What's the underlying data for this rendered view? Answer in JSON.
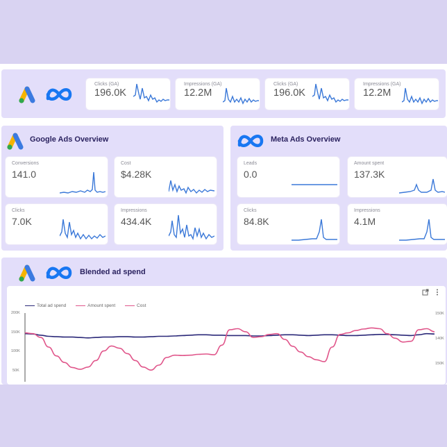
{
  "top_metrics": [
    {
      "label": "Clicks (GA)",
      "value": "196.0K"
    },
    {
      "label": "Impressions (GA)",
      "value": "12.2M"
    },
    {
      "label": "Clicks (GA)",
      "value": "196.0K"
    },
    {
      "label": "Impressions (GA)",
      "value": "12.2M"
    }
  ],
  "google_panel": {
    "title": "Google Ads Overview",
    "metrics": [
      {
        "label": "Conversions",
        "value": "141.0"
      },
      {
        "label": "Cost",
        "value": "$4.28K"
      },
      {
        "label": "Clicks",
        "value": "7.0K"
      },
      {
        "label": "Impressions",
        "value": "434.4K"
      }
    ]
  },
  "meta_panel": {
    "title": "Meta Ads Overview",
    "metrics": [
      {
        "label": "Leads",
        "value": "0.0"
      },
      {
        "label": "Amount spent",
        "value": "137.3K"
      },
      {
        "label": "Clicks",
        "value": "84.8K"
      },
      {
        "label": "Impressions",
        "value": "4.1M"
      }
    ]
  },
  "blended": {
    "title": "Blended ad spend",
    "legend": [
      "Total ad spend",
      "Amount spent",
      "Cost"
    ],
    "y_left_ticks": [
      "200K",
      "150K",
      "100K",
      "50K"
    ],
    "y_right_ticks": [
      "150K",
      "140K",
      "150K"
    ]
  },
  "icons": {
    "google_ads": "google-ads-logo-icon",
    "meta": "meta-logo-icon",
    "export": "export-icon",
    "more": "more-vert-icon"
  },
  "colors": {
    "background": "#d9d3f2",
    "panel": "#e3defa",
    "spark": "#3a78d8",
    "total_line": "#2a2878",
    "amount_line": "#e0558a",
    "title": "#2b2360"
  },
  "chart_data": {
    "type": "line",
    "series": [
      {
        "name": "Total ad spend",
        "values": [
          150,
          149,
          146,
          143,
          142,
          141,
          141,
          140,
          139,
          140,
          141,
          141,
          142,
          142,
          141,
          141,
          142,
          143,
          143,
          144,
          145,
          146,
          147,
          147,
          146,
          146,
          145,
          145,
          145,
          144,
          144,
          145,
          146,
          147,
          147,
          146,
          145,
          146,
          147,
          147,
          146,
          145,
          145,
          146,
          147,
          148,
          148,
          147,
          146,
          145,
          147,
          150,
          149
        ]
      },
      {
        "name": "Amount spent",
        "values": [
          152,
          150,
          140,
          115,
          92,
          75,
          62,
          57,
          63,
          80,
          105,
          118,
          112,
          98,
          80,
          63,
          55,
          68,
          88,
          94,
          93,
          94,
          96,
          97,
          95,
          120,
          160,
          163,
          155,
          140,
          142,
          148,
          150,
          135,
          117,
          102,
          90,
          82,
          77,
          115,
          148,
          152,
          158,
          162,
          165,
          163,
          150,
          138,
          128,
          130,
          160,
          163,
          155
        ]
      }
    ],
    "y_left_range": [
      50,
      200
    ],
    "y_left_ticks": [
      200,
      150,
      100,
      50
    ],
    "legend_position": "top-left"
  }
}
